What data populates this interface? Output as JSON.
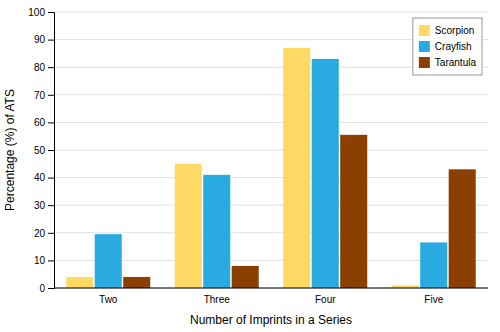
{
  "chart_data": {
    "type": "bar",
    "categories": [
      "Two",
      "Three",
      "Four",
      "Five"
    ],
    "series": [
      {
        "name": "Scorpion",
        "color": "#FFD966",
        "values": [
          4,
          45,
          87,
          1
        ]
      },
      {
        "name": "Crayfish",
        "color": "#29ABE2",
        "values": [
          19.5,
          41,
          83,
          16.5
        ]
      },
      {
        "name": "Tarantula",
        "color": "#8B4000",
        "values": [
          4,
          8,
          55.5,
          43
        ]
      }
    ],
    "xlabel": "Number of Imprints in a Series",
    "ylabel": "Percentage (%) of ATS",
    "ylim": [
      0,
      100
    ],
    "yticks": [
      0,
      10,
      20,
      30,
      40,
      50,
      60,
      70,
      80,
      90,
      100
    ],
    "grid": true,
    "legend": "upper right"
  }
}
